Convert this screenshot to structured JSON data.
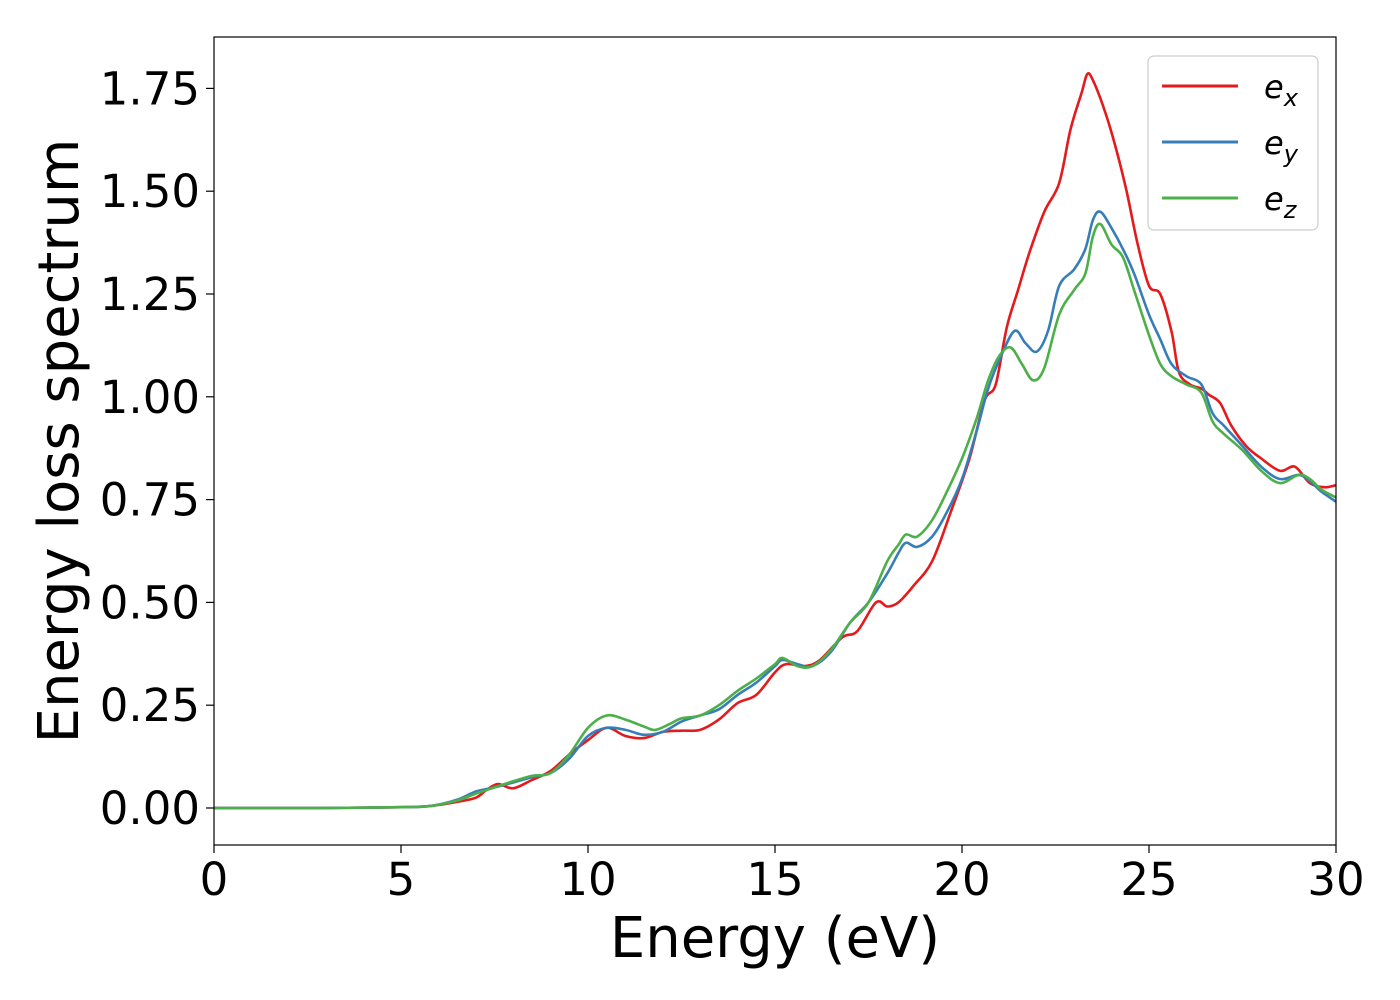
{
  "chart_data": {
    "type": "line",
    "title": "",
    "xlabel": "Energy (eV)",
    "ylabel": "Energy loss spectrum",
    "xlim": [
      0,
      30
    ],
    "ylim": [
      -0.09,
      1.875
    ],
    "xticks": [
      0,
      5,
      10,
      15,
      20,
      25,
      30
    ],
    "xtick_labels": [
      "0",
      "5",
      "10",
      "15",
      "20",
      "25",
      "30"
    ],
    "yticks": [
      0.0,
      0.25,
      0.5,
      0.75,
      1.0,
      1.25,
      1.5,
      1.75
    ],
    "ytick_labels": [
      "0.00",
      "0.25",
      "0.50",
      "0.75",
      "1.00",
      "1.25",
      "1.50",
      "1.75"
    ],
    "grid": false,
    "legend_position": "top-right",
    "series": [
      {
        "name": "e",
        "subscript": "x",
        "color": "#e41a1c",
        "points": [
          [
            0,
            0
          ],
          [
            3,
            0
          ],
          [
            5,
            0.002
          ],
          [
            5.8,
            0.005
          ],
          [
            6.5,
            0.015
          ],
          [
            7,
            0.025
          ],
          [
            7.3,
            0.045
          ],
          [
            7.6,
            0.058
          ],
          [
            8,
            0.048
          ],
          [
            8.5,
            0.068
          ],
          [
            9,
            0.09
          ],
          [
            9.5,
            0.13
          ],
          [
            10,
            0.165
          ],
          [
            10.5,
            0.195
          ],
          [
            11,
            0.175
          ],
          [
            11.5,
            0.17
          ],
          [
            12,
            0.185
          ],
          [
            12.5,
            0.188
          ],
          [
            13,
            0.19
          ],
          [
            13.5,
            0.215
          ],
          [
            14,
            0.255
          ],
          [
            14.5,
            0.275
          ],
          [
            15,
            0.33
          ],
          [
            15.3,
            0.35
          ],
          [
            15.8,
            0.345
          ],
          [
            16.2,
            0.36
          ],
          [
            16.8,
            0.415
          ],
          [
            17.2,
            0.43
          ],
          [
            17.7,
            0.5
          ],
          [
            18,
            0.49
          ],
          [
            18.3,
            0.5
          ],
          [
            18.7,
            0.54
          ],
          [
            19.2,
            0.6
          ],
          [
            19.7,
            0.72
          ],
          [
            20.2,
            0.85
          ],
          [
            20.6,
            0.99
          ],
          [
            20.9,
            1.03
          ],
          [
            21.2,
            1.17
          ],
          [
            21.5,
            1.26
          ],
          [
            21.8,
            1.35
          ],
          [
            22.2,
            1.45
          ],
          [
            22.6,
            1.52
          ],
          [
            22.9,
            1.65
          ],
          [
            23.2,
            1.74
          ],
          [
            23.35,
            1.785
          ],
          [
            23.5,
            1.77
          ],
          [
            23.8,
            1.7
          ],
          [
            24.1,
            1.61
          ],
          [
            24.4,
            1.5
          ],
          [
            24.7,
            1.37
          ],
          [
            25,
            1.27
          ],
          [
            25.3,
            1.25
          ],
          [
            25.6,
            1.16
          ],
          [
            25.8,
            1.06
          ],
          [
            26.1,
            1.03
          ],
          [
            26.4,
            1.02
          ],
          [
            26.6,
            1.005
          ],
          [
            26.9,
            0.985
          ],
          [
            27.2,
            0.93
          ],
          [
            27.6,
            0.88
          ],
          [
            28,
            0.85
          ],
          [
            28.5,
            0.82
          ],
          [
            28.9,
            0.83
          ],
          [
            29.3,
            0.79
          ],
          [
            29.7,
            0.78
          ],
          [
            30,
            0.785
          ]
        ]
      },
      {
        "name": "e",
        "subscript": "y",
        "color": "#377eb8",
        "points": [
          [
            0,
            0
          ],
          [
            3,
            0
          ],
          [
            5,
            0.002
          ],
          [
            5.8,
            0.005
          ],
          [
            6.5,
            0.02
          ],
          [
            7,
            0.04
          ],
          [
            7.5,
            0.05
          ],
          [
            8,
            0.062
          ],
          [
            8.5,
            0.075
          ],
          [
            9,
            0.085
          ],
          [
            9.5,
            0.12
          ],
          [
            10,
            0.175
          ],
          [
            10.5,
            0.195
          ],
          [
            11,
            0.19
          ],
          [
            11.5,
            0.178
          ],
          [
            12,
            0.185
          ],
          [
            12.5,
            0.21
          ],
          [
            13,
            0.225
          ],
          [
            13.5,
            0.24
          ],
          [
            14,
            0.275
          ],
          [
            14.5,
            0.305
          ],
          [
            15,
            0.345
          ],
          [
            15.2,
            0.36
          ],
          [
            15.6,
            0.35
          ],
          [
            16,
            0.345
          ],
          [
            16.5,
            0.38
          ],
          [
            17,
            0.45
          ],
          [
            17.5,
            0.5
          ],
          [
            18,
            0.57
          ],
          [
            18.3,
            0.62
          ],
          [
            18.5,
            0.645
          ],
          [
            18.8,
            0.635
          ],
          [
            19.2,
            0.66
          ],
          [
            19.6,
            0.72
          ],
          [
            20,
            0.8
          ],
          [
            20.4,
            0.92
          ],
          [
            20.7,
            1.02
          ],
          [
            21,
            1.09
          ],
          [
            21.4,
            1.16
          ],
          [
            21.7,
            1.13
          ],
          [
            22,
            1.11
          ],
          [
            22.3,
            1.16
          ],
          [
            22.6,
            1.27
          ],
          [
            23,
            1.31
          ],
          [
            23.3,
            1.36
          ],
          [
            23.5,
            1.43
          ],
          [
            23.7,
            1.45
          ],
          [
            24,
            1.41
          ],
          [
            24.3,
            1.36
          ],
          [
            24.6,
            1.3
          ],
          [
            25,
            1.2
          ],
          [
            25.3,
            1.14
          ],
          [
            25.6,
            1.08
          ],
          [
            26,
            1.05
          ],
          [
            26.4,
            1.03
          ],
          [
            26.7,
            0.96
          ],
          [
            27,
            0.93
          ],
          [
            27.5,
            0.88
          ],
          [
            28,
            0.83
          ],
          [
            28.5,
            0.8
          ],
          [
            29,
            0.81
          ],
          [
            29.3,
            0.795
          ],
          [
            29.6,
            0.77
          ],
          [
            30,
            0.745
          ]
        ]
      },
      {
        "name": "e",
        "subscript": "z",
        "color": "#4daf4a",
        "points": [
          [
            0,
            0
          ],
          [
            3,
            0
          ],
          [
            5,
            0.002
          ],
          [
            5.8,
            0.005
          ],
          [
            6.5,
            0.018
          ],
          [
            7,
            0.035
          ],
          [
            7.5,
            0.05
          ],
          [
            8,
            0.065
          ],
          [
            8.5,
            0.078
          ],
          [
            9,
            0.085
          ],
          [
            9.5,
            0.13
          ],
          [
            10,
            0.195
          ],
          [
            10.5,
            0.225
          ],
          [
            11,
            0.215
          ],
          [
            11.5,
            0.198
          ],
          [
            11.8,
            0.19
          ],
          [
            12.2,
            0.205
          ],
          [
            12.5,
            0.218
          ],
          [
            13,
            0.225
          ],
          [
            13.5,
            0.25
          ],
          [
            14,
            0.285
          ],
          [
            14.5,
            0.315
          ],
          [
            15,
            0.35
          ],
          [
            15.2,
            0.365
          ],
          [
            15.6,
            0.345
          ],
          [
            16,
            0.345
          ],
          [
            16.5,
            0.385
          ],
          [
            17,
            0.45
          ],
          [
            17.5,
            0.5
          ],
          [
            18,
            0.6
          ],
          [
            18.3,
            0.64
          ],
          [
            18.5,
            0.665
          ],
          [
            18.8,
            0.66
          ],
          [
            19.2,
            0.7
          ],
          [
            19.6,
            0.77
          ],
          [
            20,
            0.85
          ],
          [
            20.4,
            0.95
          ],
          [
            20.7,
            1.04
          ],
          [
            21,
            1.1
          ],
          [
            21.3,
            1.12
          ],
          [
            21.6,
            1.08
          ],
          [
            21.9,
            1.04
          ],
          [
            22.2,
            1.07
          ],
          [
            22.6,
            1.2
          ],
          [
            23,
            1.26
          ],
          [
            23.3,
            1.3
          ],
          [
            23.5,
            1.39
          ],
          [
            23.7,
            1.42
          ],
          [
            24,
            1.37
          ],
          [
            24.3,
            1.34
          ],
          [
            24.6,
            1.26
          ],
          [
            25,
            1.15
          ],
          [
            25.3,
            1.08
          ],
          [
            25.6,
            1.05
          ],
          [
            26,
            1.03
          ],
          [
            26.4,
            1.01
          ],
          [
            26.7,
            0.94
          ],
          [
            27,
            0.91
          ],
          [
            27.5,
            0.87
          ],
          [
            28,
            0.82
          ],
          [
            28.5,
            0.79
          ],
          [
            29,
            0.81
          ],
          [
            29.3,
            0.8
          ],
          [
            29.6,
            0.775
          ],
          [
            30,
            0.755
          ]
        ]
      }
    ]
  }
}
